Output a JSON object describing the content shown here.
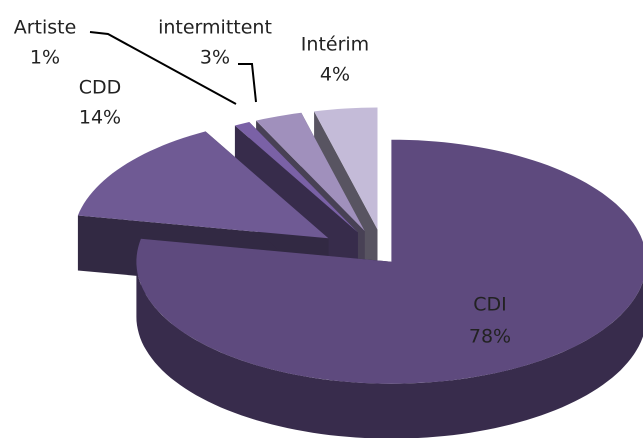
{
  "chart_data": {
    "type": "pie3d",
    "categories": [
      "CDI",
      "CDD",
      "Artiste",
      "intermittent",
      "Intérim"
    ],
    "values": [
      78,
      14,
      1,
      3,
      4
    ],
    "value_labels": [
      "78%",
      "14%",
      "1%",
      "3%",
      "4%"
    ],
    "colors": [
      "#5e4a7e",
      "#6f5a94",
      "#7a61a6",
      "#a090bc",
      "#c4bbd8"
    ]
  }
}
